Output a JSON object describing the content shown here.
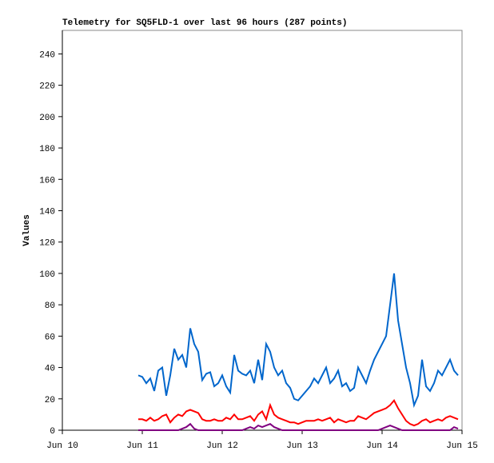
{
  "chart_data": {
    "type": "line",
    "title": "Telemetry for SQ5FLD-1 over last 96 hours (287 points)",
    "y_label": "Values",
    "xlim": [
      10,
      15
    ],
    "xticks": [
      {
        "value": 10,
        "label": "Jun 10"
      },
      {
        "value": 11,
        "label": "Jun 11"
      },
      {
        "value": 12,
        "label": "Jun 12"
      },
      {
        "value": 13,
        "label": "Jun 13"
      },
      {
        "value": 14,
        "label": "Jun 14"
      },
      {
        "value": 15,
        "label": "Jun 15"
      }
    ],
    "ylim": [
      0,
      255
    ],
    "yticks": [
      0,
      20,
      40,
      60,
      80,
      100,
      120,
      140,
      160,
      180,
      200,
      220,
      240
    ],
    "x": [
      10.95,
      11,
      11.05,
      11.1,
      11.15,
      11.2,
      11.25,
      11.3,
      11.35,
      11.4,
      11.45,
      11.5,
      11.55,
      11.6,
      11.65,
      11.7,
      11.75,
      11.8,
      11.85,
      11.9,
      11.95,
      12,
      12.05,
      12.1,
      12.15,
      12.2,
      12.25,
      12.3,
      12.35,
      12.4,
      12.45,
      12.5,
      12.55,
      12.6,
      12.65,
      12.7,
      12.75,
      12.8,
      12.85,
      12.9,
      12.95,
      13,
      13.05,
      13.1,
      13.15,
      13.2,
      13.25,
      13.3,
      13.35,
      13.4,
      13.45,
      13.5,
      13.55,
      13.6,
      13.65,
      13.7,
      13.75,
      13.8,
      13.85,
      13.9,
      13.95,
      14,
      14.05,
      14.1,
      14.15,
      14.2,
      14.25,
      14.3,
      14.35,
      14.4,
      14.45,
      14.5,
      14.55,
      14.6,
      14.65,
      14.7,
      14.75,
      14.8,
      14.85,
      14.9,
      14.95
    ],
    "series": [
      {
        "color": "#0066cc",
        "values": [
          35,
          34,
          30,
          33,
          25,
          38,
          40,
          22,
          35,
          52,
          45,
          48,
          40,
          65,
          55,
          50,
          32,
          36,
          37,
          28,
          30,
          35,
          28,
          24,
          48,
          38,
          36,
          35,
          38,
          30,
          45,
          32,
          55,
          50,
          40,
          35,
          38,
          30,
          27,
          20,
          19,
          22,
          25,
          28,
          33,
          30,
          35,
          40,
          30,
          33,
          38,
          28,
          30,
          25,
          27,
          40,
          35,
          30,
          38,
          45,
          50,
          55,
          60,
          80,
          100,
          70,
          55,
          40,
          30,
          16,
          22,
          45,
          28,
          25,
          30,
          38,
          35,
          40,
          45,
          38,
          35
        ]
      },
      {
        "color": "#ff0000",
        "values": [
          7,
          7,
          6,
          8,
          6,
          7,
          9,
          10,
          5,
          8,
          10,
          9,
          12,
          13,
          12,
          11,
          7,
          6,
          6,
          7,
          6,
          6,
          8,
          7,
          10,
          7,
          7,
          8,
          9,
          6,
          10,
          12,
          7,
          16,
          10,
          8,
          7,
          6,
          5,
          5,
          4,
          5,
          6,
          6,
          6,
          7,
          6,
          7,
          8,
          5,
          7,
          6,
          5,
          6,
          6,
          9,
          8,
          7,
          9,
          11,
          12,
          13,
          14,
          16,
          19,
          14,
          10,
          6,
          4,
          3,
          4,
          6,
          7,
          5,
          6,
          7,
          6,
          8,
          9,
          8,
          7
        ]
      },
      {
        "color": "#800080",
        "values": [
          0,
          0,
          0,
          0,
          0,
          0,
          0,
          0,
          0,
          0,
          0,
          1,
          2,
          4,
          1,
          0,
          0,
          0,
          0,
          0,
          0,
          0,
          0,
          0,
          0,
          0,
          0,
          1,
          2,
          1,
          3,
          2,
          3,
          4,
          2,
          1,
          0,
          0,
          0,
          0,
          0,
          0,
          0,
          0,
          0,
          0,
          0,
          0,
          0,
          0,
          0,
          0,
          0,
          0,
          0,
          0,
          0,
          0,
          0,
          0,
          0,
          1,
          2,
          3,
          2,
          1,
          0,
          0,
          0,
          0,
          0,
          0,
          0,
          0,
          0,
          0,
          0,
          0,
          0,
          2,
          1
        ]
      }
    ]
  }
}
